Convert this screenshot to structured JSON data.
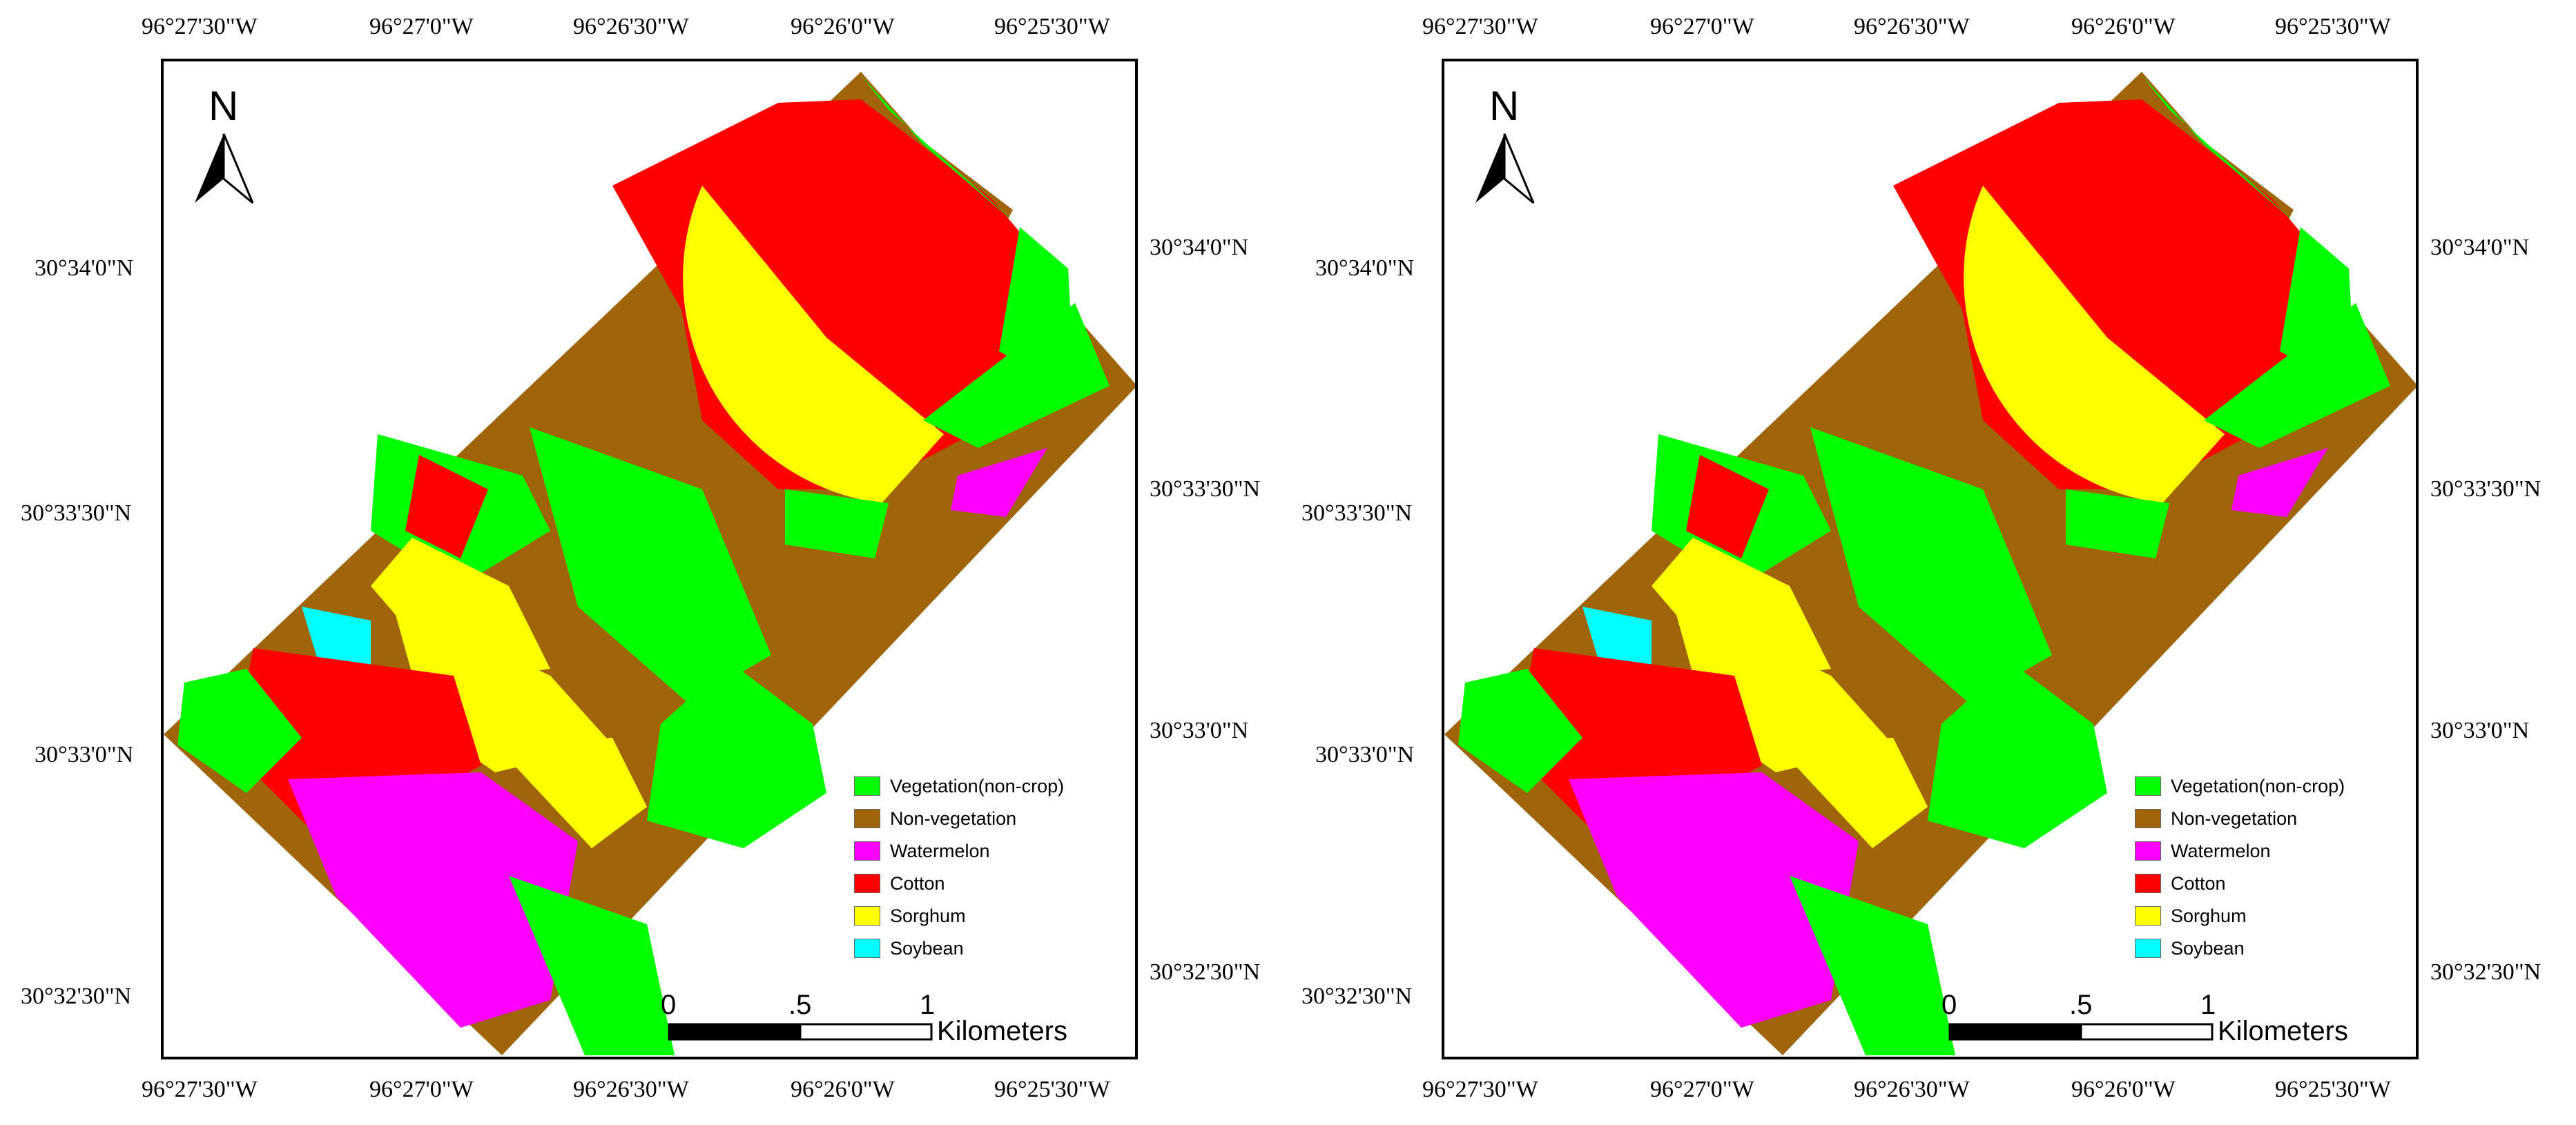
{
  "top_axis_labels": [
    "96°27'30\"W",
    "96°27'0\"W",
    "96°26'30\"W",
    "96°26'0\"W",
    "96°25'30\"W"
  ],
  "bottom_axis_labels": [
    "96°27'30\"W",
    "96°27'0\"W",
    "96°26'30\"W",
    "96°26'0\"W",
    "96°25'30\"W"
  ],
  "left_axis_labels": [
    "30°34'0\"N",
    "30°33'30\"N",
    "30°33'0\"N",
    "30°32'30\"N"
  ],
  "right_axis_labels": [
    "30°34'0\"N",
    "30°33'30\"N",
    "30°33'0\"N",
    "30°32'30\"N"
  ],
  "north_label": "N",
  "scale": {
    "ticks": [
      "0",
      ".5",
      "1"
    ],
    "unit": "Kilometers"
  },
  "legend": [
    {
      "label": "Vegetation(non-crop)",
      "color": "#00ff00"
    },
    {
      "label": "Non-vegetation",
      "color": "#a0640a"
    },
    {
      "label": "Watermelon",
      "color": "#ff00ff"
    },
    {
      "label": "Cotton",
      "color": "#ff0000"
    },
    {
      "label": "Sorghum",
      "color": "#ffff00"
    },
    {
      "label": "Soybean",
      "color": "#00ffff"
    }
  ],
  "panels": [
    {
      "id": "left"
    },
    {
      "id": "right"
    }
  ]
}
